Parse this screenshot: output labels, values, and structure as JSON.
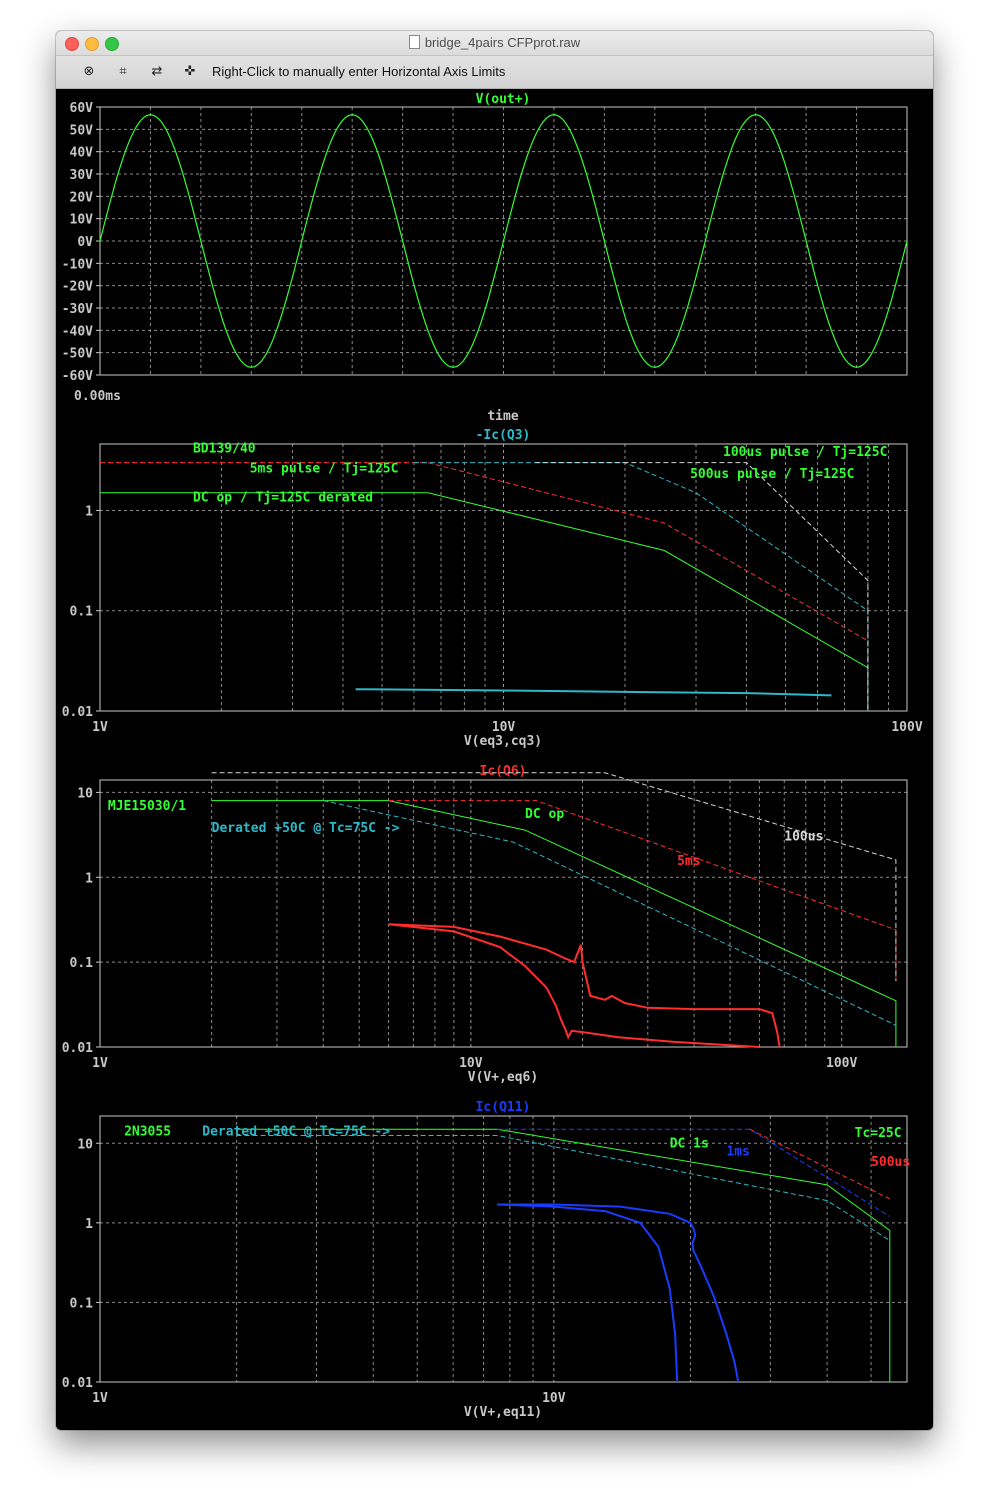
{
  "window": {
    "title": "bridge_4pairs CFPprot.raw",
    "toolbar_hint": "Right-Click to manually enter Horizontal Axis Limits",
    "toolbar_icons": [
      "zoom-cancel-icon",
      "zoom-extents-icon",
      "pan-icon",
      "cursor-probe-icon"
    ]
  },
  "colors": {
    "bg": "#000000",
    "axis": "#c8c8c8",
    "grid": "#8a8a8a",
    "green": "#33ff33",
    "red": "#ff2d2d",
    "cyan": "#2fb8c8",
    "white": "#d8d8d8",
    "blue": "#1a3cff"
  },
  "chart_data": [
    {
      "type": "line",
      "title": "V(out+)",
      "xlabel": "time",
      "x_tick_labels": [
        "0.00ms"
      ],
      "ylim": [
        -60,
        60
      ],
      "y_ticks": [
        60,
        50,
        40,
        30,
        20,
        10,
        0,
        -10,
        -20,
        -30,
        -40,
        -50,
        -60
      ],
      "y_tick_labels": [
        "60V",
        "50V",
        "40V",
        "30V",
        "20V",
        "10V",
        "0V",
        "-10V",
        "-20V",
        "-30V",
        "-40V",
        "-50V",
        "-60V"
      ],
      "grid": true,
      "series": [
        {
          "name": "V(out+)",
          "color": "#33ff33",
          "amplitude": 56.5,
          "cycles": 4,
          "start_phase_value": 0
        }
      ]
    },
    {
      "type": "line",
      "title": "-Ic(Q3)",
      "xlabel": "V(eq3,cq3)",
      "xscale": "log",
      "yscale": "log",
      "xlim": [
        1,
        100
      ],
      "ylim": [
        0.01,
        4.6
      ],
      "x_tick_labels": [
        "1V",
        "10V",
        "100V"
      ],
      "y_tick_labels": [
        "1",
        "0.1",
        "0.01"
      ],
      "grid": true,
      "annotations": [
        {
          "text": "BD139/40",
          "color": "#33ff33",
          "x": 1.7,
          "y": 3.8
        },
        {
          "text": "5ms pulse / Tj=125C",
          "color": "#33ff33",
          "x": 2.35,
          "y": 2.4
        },
        {
          "text": "DC op / Tj=125C derated",
          "color": "#33ff33",
          "x": 1.7,
          "y": 1.23
        },
        {
          "text": "100us pulse / Tj=125C",
          "color": "#33ff33",
          "x": 35,
          "y": 3.5
        },
        {
          "text": "500us pulse / Tj=125C",
          "color": "#33ff33",
          "x": 29,
          "y": 2.1
        }
      ],
      "series": [
        {
          "color": "#33ff33",
          "dash": false,
          "x": [
            1,
            6.5,
            25,
            80,
            80
          ],
          "y": [
            1.5,
            1.5,
            0.4,
            0.027,
            0.01
          ]
        },
        {
          "color": "#ff2d2d",
          "dash": true,
          "x": [
            1,
            6.5,
            25,
            80,
            80
          ],
          "y": [
            3,
            3,
            0.75,
            0.05,
            0.01
          ]
        },
        {
          "color": "#2fb8c8",
          "dash": true,
          "x": [
            6,
            20,
            30,
            80,
            80
          ],
          "y": [
            3,
            3,
            1.5,
            0.1,
            0.01
          ]
        },
        {
          "color": "#d8d8d8",
          "dash": true,
          "x": [
            12,
            40,
            80,
            80
          ],
          "y": [
            3,
            3,
            0.2,
            0.01
          ]
        },
        {
          "color": "#2fb8c8",
          "dash": false,
          "width": 2,
          "x": [
            4.3,
            10,
            20,
            40,
            65
          ],
          "y": [
            0.0165,
            0.016,
            0.0155,
            0.0151,
            0.0143
          ]
        }
      ]
    },
    {
      "type": "line",
      "title": "Ic(Q6)",
      "title_color": "#ff2d2d",
      "xlabel": "V(V+,eq6)",
      "xscale": "log",
      "yscale": "log",
      "xlim": [
        1,
        150
      ],
      "ylim": [
        0.01,
        14
      ],
      "x_tick_labels": [
        "1V",
        "10V",
        "100V"
      ],
      "y_tick_labels": [
        "10",
        "1",
        "0.1",
        "0.01"
      ],
      "grid": true,
      "annotations": [
        {
          "text": "MJE15030/1",
          "color": "#33ff33",
          "x": 1.05,
          "y": 6.2
        },
        {
          "text": "Derated +50C @ Tc=75C ->",
          "color": "#2fb8c8",
          "x": 2.0,
          "y": 3.4
        },
        {
          "text": "DC op",
          "color": "#33ff33",
          "x": 14,
          "y": 5.0
        },
        {
          "text": "5ms",
          "color": "#ff2d2d",
          "x": 36,
          "y": 1.4
        },
        {
          "text": "100us",
          "color": "#d8d8d8",
          "x": 70,
          "y": 2.7
        }
      ],
      "series": [
        {
          "color": "#33ff33",
          "dash": false,
          "x": [
            2,
            6,
            14,
            140,
            140
          ],
          "y": [
            8,
            8,
            3.6,
            0.035,
            0.01
          ]
        },
        {
          "color": "#2fb8c8",
          "dash": true,
          "x": [
            4,
            13,
            140
          ],
          "y": [
            8,
            2.6,
            0.018
          ]
        },
        {
          "color": "#ff2d2d",
          "dash": true,
          "x": [
            6,
            15,
            140,
            140
          ],
          "y": [
            8,
            8,
            0.24,
            0.06
          ]
        },
        {
          "color": "#d8d8d8",
          "dash": true,
          "x": [
            2,
            23,
            140,
            140
          ],
          "y": [
            17,
            17,
            1.6,
            0.06
          ]
        },
        {
          "color": "#ff2d2d",
          "dash": false,
          "width": 2,
          "x": [
            6,
            9,
            12,
            16,
            18,
            19,
            19.3,
            19.8,
            20,
            21,
            23,
            24,
            26,
            30,
            40,
            60,
            65,
            67,
            68
          ],
          "y": [
            0.28,
            0.26,
            0.2,
            0.14,
            0.11,
            0.1,
            0.12,
            0.16,
            0.1,
            0.04,
            0.036,
            0.04,
            0.033,
            0.029,
            0.028,
            0.028,
            0.025,
            0.015,
            0.01
          ]
        },
        {
          "color": "#ff2d2d",
          "dash": false,
          "width": 2,
          "x": [
            6,
            9,
            12,
            14,
            16,
            17,
            17.5,
            18,
            18.3,
            18.7,
            20,
            25,
            35,
            50,
            60
          ],
          "y": [
            0.28,
            0.23,
            0.15,
            0.09,
            0.05,
            0.03,
            0.021,
            0.016,
            0.013,
            0.0155,
            0.015,
            0.013,
            0.0115,
            0.0105,
            0.01
          ]
        }
      ]
    },
    {
      "type": "line",
      "title": "Ic(Q11)",
      "title_color": "#1a3cff",
      "xlabel": "V(V+,eq11)",
      "xscale": "log",
      "yscale": "log",
      "xlim": [
        1,
        60
      ],
      "ylim": [
        0.01,
        22
      ],
      "x_tick_labels": [
        "1V",
        "10V"
      ],
      "y_tick_labels": [
        "10",
        "1",
        "0.1",
        "0.01"
      ],
      "grid": true,
      "annotations": [
        {
          "text": "2N3055",
          "color": "#33ff33",
          "x": 1.13,
          "y": 12.5
        },
        {
          "text": "Derated +50C @ Tc=75C ->",
          "color": "#2fb8c8",
          "x": 1.68,
          "y": 12.5
        },
        {
          "text": "DC 1s",
          "color": "#33ff33",
          "x": 18,
          "y": 8.9
        },
        {
          "text": "1ms",
          "color": "#1a3cff",
          "x": 24,
          "y": 7.0
        },
        {
          "text": "Tc=25C",
          "color": "#33ff33",
          "x": 46,
          "y": 12.0
        },
        {
          "text": "500us",
          "color": "#ff2d2d",
          "x": 50,
          "y": 5.2
        }
      ],
      "series": [
        {
          "color": "#33ff33",
          "dash": false,
          "x": [
            2,
            7.5,
            40,
            55,
            55
          ],
          "y": [
            15,
            15,
            3,
            0.8,
            0.01
          ]
        },
        {
          "color": "#2fb8c8",
          "dash": true,
          "x": [
            2,
            7.5,
            40,
            55
          ],
          "y": [
            12.5,
            12.5,
            1.9,
            0.6
          ]
        },
        {
          "color": "#1a3cff",
          "dash": true,
          "x": [
            7.5,
            27,
            55
          ],
          "y": [
            15,
            15,
            1.2
          ]
        },
        {
          "color": "#ff2d2d",
          "dash": true,
          "x": [
            27,
            55
          ],
          "y": [
            15,
            2.0
          ]
        },
        {
          "color": "#1a3cff",
          "dash": false,
          "width": 2,
          "x": [
            7.5,
            10,
            13,
            15.5,
            17,
            18,
            18.5,
            18.7
          ],
          "y": [
            1.7,
            1.6,
            1.4,
            1,
            0.5,
            0.15,
            0.04,
            0.01
          ]
        },
        {
          "color": "#1a3cff",
          "dash": false,
          "width": 2,
          "x": [
            7.5,
            10,
            14,
            18,
            20,
            20.3,
            20.5,
            20.2,
            20.3,
            21,
            22.5,
            24,
            25,
            25.5
          ],
          "y": [
            1.7,
            1.7,
            1.6,
            1.3,
            1.0,
            0.85,
            0.7,
            0.55,
            0.45,
            0.3,
            0.12,
            0.04,
            0.018,
            0.01
          ]
        }
      ]
    }
  ]
}
